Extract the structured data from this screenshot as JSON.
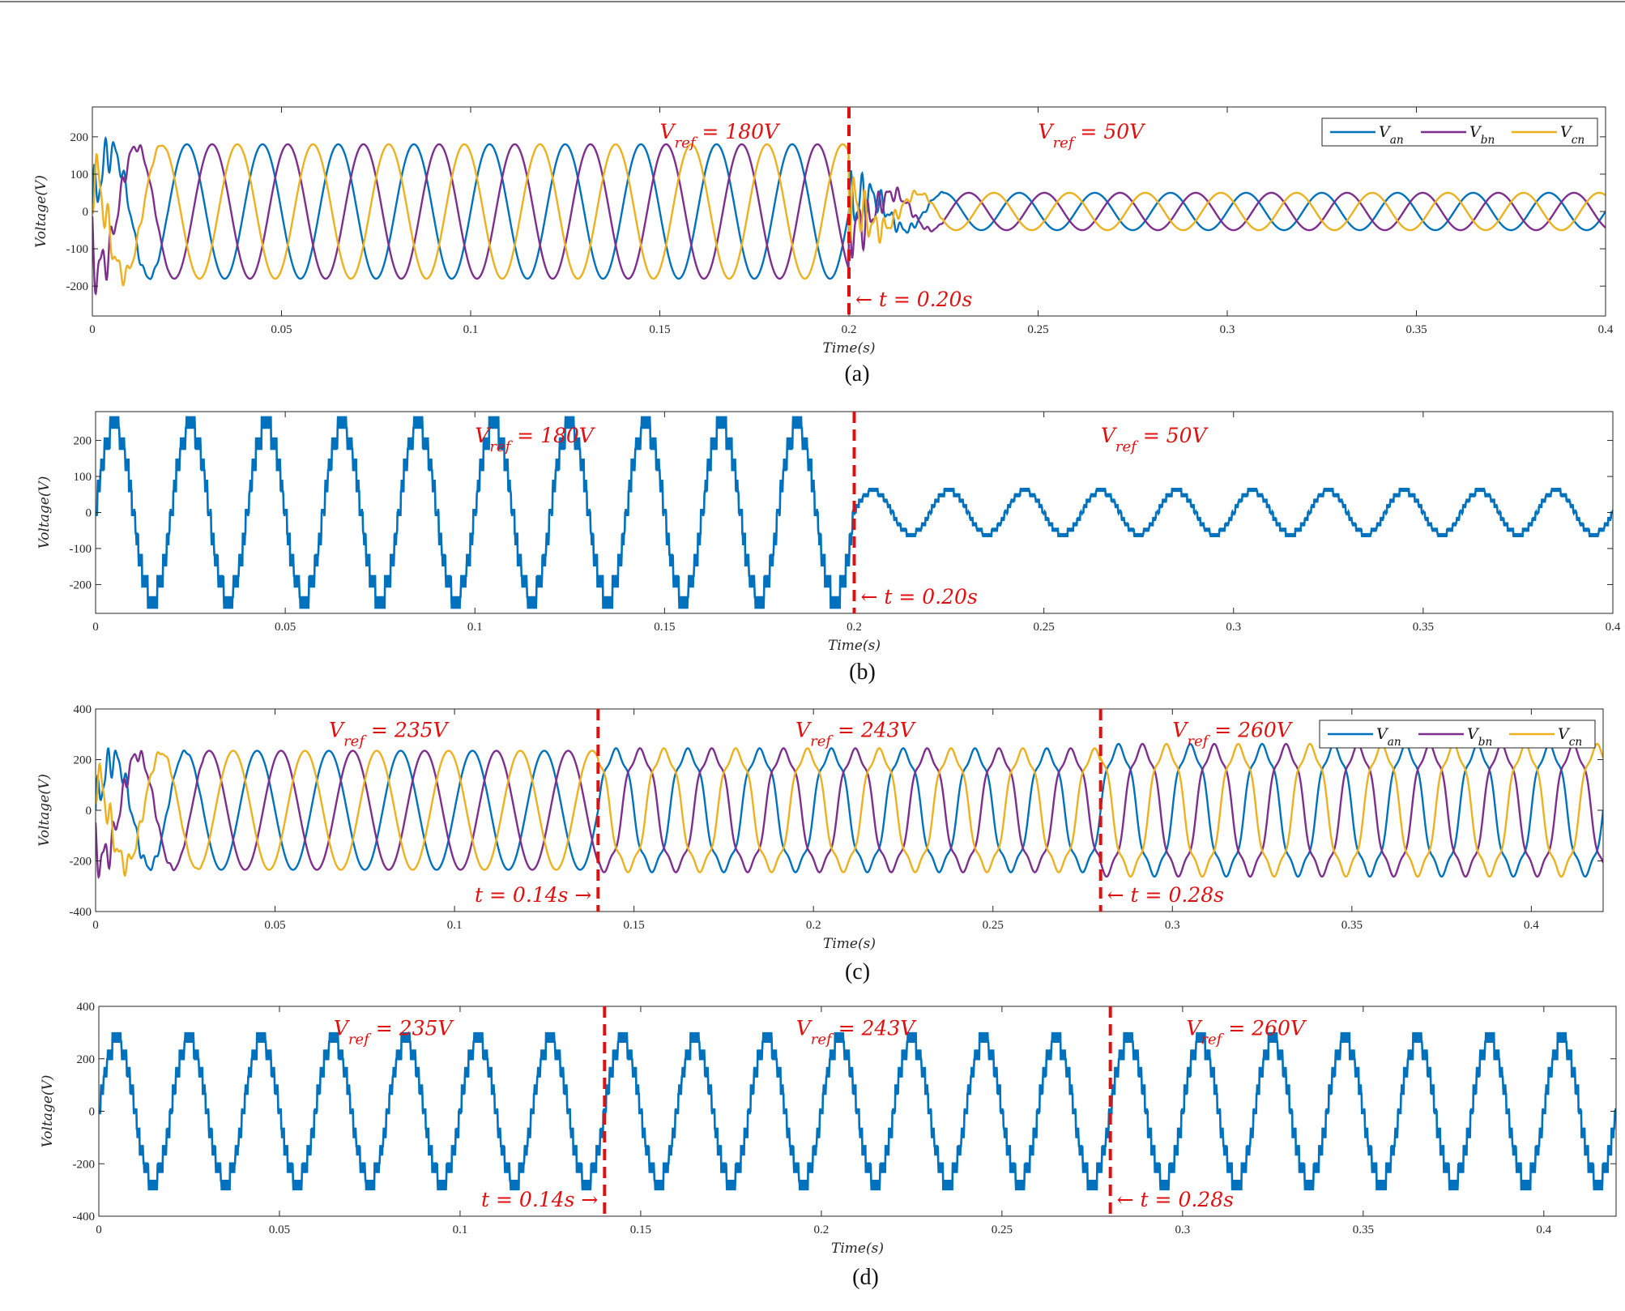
{
  "colors": {
    "van": "#0072BD",
    "vbn": "#7E2F8E",
    "vcn": "#EDB120",
    "marker": "#e01010",
    "axis": "#262626"
  },
  "chart_data": [
    {
      "id": "a",
      "type": "line",
      "caption": "(a)",
      "xlabel": "Time(s)",
      "ylabel": "Voltage(V)",
      "xlim": [
        0,
        0.4
      ],
      "ylim": [
        -280,
        280
      ],
      "xticks": [
        0,
        0.05,
        0.1,
        0.15,
        0.2,
        0.25,
        0.3,
        0.35,
        0.4
      ],
      "yticks": [
        -200,
        -100,
        0,
        100,
        200
      ],
      "grid": false,
      "legend": {
        "position": "top-right",
        "entries": [
          "V_an",
          "V_bn",
          "V_cn"
        ]
      },
      "series": [
        {
          "name": "V_an",
          "waveform": "three-phase sinusoid",
          "phase_deg": 0,
          "segments": [
            {
              "t_start": 0,
              "t_end": 0.2,
              "amplitude": 180,
              "frequency_hz": 50
            },
            {
              "t_start": 0.2,
              "t_end": 0.4,
              "amplitude": 50,
              "frequency_hz": 50
            }
          ]
        },
        {
          "name": "V_bn",
          "waveform": "three-phase sinusoid",
          "phase_deg": -120,
          "segments": [
            {
              "t_start": 0,
              "t_end": 0.2,
              "amplitude": 180,
              "frequency_hz": 50
            },
            {
              "t_start": 0.2,
              "t_end": 0.4,
              "amplitude": 50,
              "frequency_hz": 50
            }
          ]
        },
        {
          "name": "V_cn",
          "waveform": "three-phase sinusoid",
          "phase_deg": 120,
          "segments": [
            {
              "t_start": 0,
              "t_end": 0.2,
              "amplitude": 180,
              "frequency_hz": 50
            },
            {
              "t_start": 0.2,
              "t_end": 0.4,
              "amplitude": 50,
              "frequency_hz": 50
            }
          ]
        }
      ],
      "transients": [
        {
          "t_start": 0,
          "t_end": 0.02
        },
        {
          "t_start": 0.2,
          "t_end": 0.225
        }
      ],
      "switch_markers": [
        {
          "t": 0.2,
          "label": "← t = 0.20s"
        }
      ],
      "annotations": [
        {
          "text": "V_ref = 180V",
          "t": 0.15,
          "v": 195
        },
        {
          "text": "V_ref = 50V",
          "t": 0.25,
          "v": 195
        }
      ]
    },
    {
      "id": "b",
      "type": "line",
      "caption": "(b)",
      "xlabel": "Time(s)",
      "ylabel": "Voltage(V)",
      "xlim": [
        0,
        0.4
      ],
      "ylim": [
        -280,
        280
      ],
      "xticks": [
        0,
        0.05,
        0.1,
        0.15,
        0.2,
        0.25,
        0.3,
        0.35,
        0.4
      ],
      "yticks": [
        -200,
        -100,
        0,
        100,
        200
      ],
      "grid": false,
      "series": [
        {
          "name": "",
          "waveform": "multilevel staircase with PWM",
          "phase_deg": 0,
          "segments": [
            {
              "t_start": 0,
              "t_end": 0.2,
              "amplitude": 180,
              "peak": 235,
              "frequency_hz": 50
            },
            {
              "t_start": 0.2,
              "t_end": 0.4,
              "amplitude": 50,
              "peak": 60,
              "frequency_hz": 50
            }
          ]
        }
      ],
      "switch_markers": [
        {
          "t": 0.2,
          "label": "← t = 0.20s"
        }
      ],
      "annotations": [
        {
          "text": "V_ref = 180V",
          "t": 0.1,
          "v": 195
        },
        {
          "text": "V_ref = 50V",
          "t": 0.265,
          "v": 195
        }
      ]
    },
    {
      "id": "c",
      "type": "line",
      "caption": "(c)",
      "xlabel": "Time(s)",
      "ylabel": "Voltage(V)",
      "xlim": [
        0,
        0.42
      ],
      "ylim": [
        -400,
        400
      ],
      "xticks": [
        0,
        0.05,
        0.1,
        0.15,
        0.2,
        0.25,
        0.3,
        0.35,
        0.4
      ],
      "yticks": [
        -400,
        -200,
        0,
        200,
        400
      ],
      "grid": false,
      "legend": {
        "position": "top-right",
        "entries": [
          "V_an",
          "V_bn",
          "V_cn"
        ]
      },
      "series": [
        {
          "name": "V_an",
          "waveform": "three-phase sinusoid",
          "phase_deg": 0,
          "segments": [
            {
              "t_start": 0,
              "t_end": 0.14,
              "amplitude": 235,
              "frequency_hz": 50
            },
            {
              "t_start": 0.14,
              "t_end": 0.28,
              "amplitude": 243,
              "frequency_hz": 50
            },
            {
              "t_start": 0.28,
              "t_end": 0.42,
              "amplitude": 260,
              "frequency_hz": 50
            }
          ]
        },
        {
          "name": "V_bn",
          "waveform": "three-phase sinusoid",
          "phase_deg": -120,
          "segments": [
            {
              "t_start": 0,
              "t_end": 0.14,
              "amplitude": 235,
              "frequency_hz": 50
            },
            {
              "t_start": 0.14,
              "t_end": 0.28,
              "amplitude": 243,
              "frequency_hz": 50
            },
            {
              "t_start": 0.28,
              "t_end": 0.42,
              "amplitude": 260,
              "frequency_hz": 50
            }
          ]
        },
        {
          "name": "V_cn",
          "waveform": "three-phase sinusoid",
          "phase_deg": 120,
          "segments": [
            {
              "t_start": 0,
              "t_end": 0.14,
              "amplitude": 235,
              "frequency_hz": 50
            },
            {
              "t_start": 0.14,
              "t_end": 0.28,
              "amplitude": 243,
              "frequency_hz": 50
            },
            {
              "t_start": 0.28,
              "t_end": 0.42,
              "amplitude": 260,
              "frequency_hz": 50
            }
          ]
        }
      ],
      "transients": [
        {
          "t_start": 0,
          "t_end": 0.03
        }
      ],
      "switch_markers": [
        {
          "t": 0.14,
          "label": "t = 0.14s →"
        },
        {
          "t": 0.28,
          "label": "← t = 0.28s"
        }
      ],
      "annotations": [
        {
          "text": "V_ref = 235V",
          "t": 0.065,
          "v": 290
        },
        {
          "text": "V_ref = 243V",
          "t": 0.195,
          "v": 290
        },
        {
          "text": "V_ref = 260V",
          "t": 0.3,
          "v": 290
        }
      ]
    },
    {
      "id": "d",
      "type": "line",
      "caption": "(d)",
      "xlabel": "Time(s)",
      "ylabel": "Voltage(V)",
      "xlim": [
        0,
        0.42
      ],
      "ylim": [
        -400,
        400
      ],
      "xticks": [
        0,
        0.05,
        0.1,
        0.15,
        0.2,
        0.25,
        0.3,
        0.35,
        0.4
      ],
      "yticks": [
        -400,
        -200,
        0,
        200,
        400
      ],
      "grid": false,
      "series": [
        {
          "name": "",
          "waveform": "multilevel staircase with PWM",
          "phase_deg": 0,
          "segments": [
            {
              "t_start": 0,
              "t_end": 0.14,
              "amplitude": 235,
              "peak": 265,
              "frequency_hz": 50
            },
            {
              "t_start": 0.14,
              "t_end": 0.28,
              "amplitude": 243,
              "peak": 265,
              "frequency_hz": 50
            },
            {
              "t_start": 0.28,
              "t_end": 0.42,
              "amplitude": 260,
              "peak": 265,
              "frequency_hz": 50
            }
          ]
        }
      ],
      "switch_markers": [
        {
          "t": 0.14,
          "label": "t = 0.14s →"
        },
        {
          "t": 0.28,
          "label": "← t = 0.28s"
        }
      ],
      "annotations": [
        {
          "text": "V_ref = 235V",
          "t": 0.065,
          "v": 290
        },
        {
          "text": "V_ref = 243V",
          "t": 0.193,
          "v": 290
        },
        {
          "text": "V_ref = 260V",
          "t": 0.301,
          "v": 290
        }
      ]
    }
  ]
}
